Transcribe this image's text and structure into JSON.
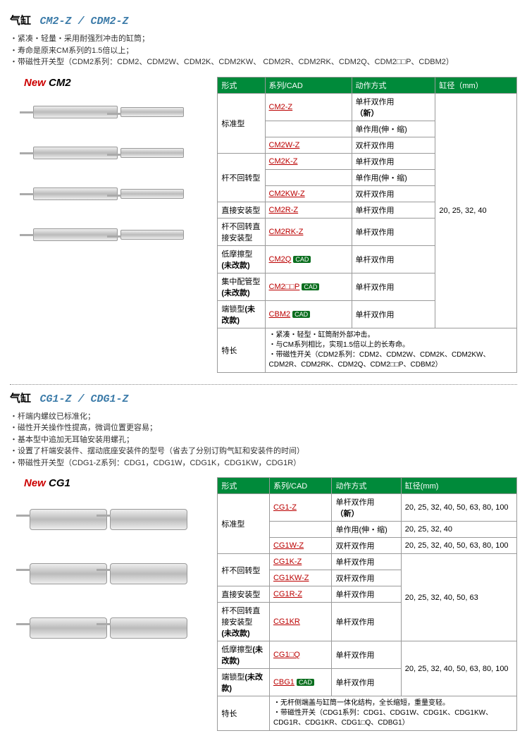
{
  "section1": {
    "title_prefix": "气缸",
    "title_model": "CM2-Z / CDM2-Z",
    "bullets": [
      "紧凑・轻量・采用耐强烈冲击的缸筒；",
      "寿命是原来CM系列的1.5倍以上；",
      "带磁性开关型（CDM2系列：CDM2、CDM2W、CDM2K、CDM2KW、 CDM2R、CDM2RK、CDM2Q、CDM2□□P、CDBM2）"
    ],
    "new_label": "New",
    "new_model": "CM2",
    "headers": {
      "form": "形式",
      "series": "系列/CAD",
      "action": "动作方式",
      "bore": "缸径（mm）"
    },
    "bore_all": "20, 25, 32, 40",
    "rows": [
      {
        "form": "标准型",
        "form_rowspan": 3,
        "series": "CM2-Z",
        "action": "单杆双作用\n（新）"
      },
      {
        "series": " ",
        "plain": true,
        "action": "单作用(伸・缩)"
      },
      {
        "series": "CM2W-Z",
        "action": "双杆双作用"
      },
      {
        "form": "杆不回转型",
        "form_rowspan": 3,
        "series": "CM2K-Z",
        "action": "单杆双作用"
      },
      {
        "series": " ",
        "plain": true,
        "action": "单作用(伸・缩)"
      },
      {
        "series": "CM2KW-Z",
        "action": "双杆双作用"
      },
      {
        "form": "直接安装型",
        "series": "CM2R-Z",
        "action": "单杆双作用"
      },
      {
        "form": "杆不回转直接安装型",
        "series": "CM2RK-Z",
        "action": "单杆双作用"
      },
      {
        "form": "低摩擦型(未改款)",
        "bold": true,
        "series": "CM2Q",
        "cad": true,
        "action": "单杆双作用"
      },
      {
        "form": "集中配管型(未改款)",
        "bold": true,
        "series": "CM2□□P",
        "cad": true,
        "action": "单杆双作用"
      },
      {
        "form": "端锁型(未改款)",
        "bold": true,
        "series": "CBM2",
        "cad": true,
        "action": "单杆双作用"
      }
    ],
    "features_label": "特长",
    "features": [
      "紧凑・轻型・缸筒耐外部冲击。",
      "与CM系列相比，实现1.5倍以上的长寿命。",
      "带磁性开关（CDM2系列：CDM2、CDM2W、CDM2K、CDM2KW、CDM2R、CDM2RK、CDM2Q、CDM2□□P、CDBM2）"
    ]
  },
  "section2": {
    "title_prefix": "气缸",
    "title_model": "CG1-Z / CDG1-Z",
    "bullets": [
      "杆端内螺纹已标准化；",
      "磁性开关操作性提高，微调位置更容易；",
      "基本型中追加无耳轴安装用螺孔；",
      "设置了杆端安装件、摆动底座安装件的型号（省去了分别订购气缸和安装件的时间）",
      "带磁性开关型（CDG1-Z系列：CDG1，CDG1W，CDG1K，CDG1KW，CDG1R）"
    ],
    "new_label": "New",
    "new_model": "CG1",
    "headers": {
      "form": "形式",
      "series": "系列/CAD",
      "action": "动作方式",
      "bore": "缸径(mm)"
    },
    "rows": [
      {
        "form": "标准型",
        "form_rowspan": 3,
        "series": "CG1-Z",
        "action": "单杆双作用\n（新）",
        "bore": "20, 25, 32, 40, 50, 63, 80, 100"
      },
      {
        "series": " ",
        "plain": true,
        "action": "单作用(伸・缩)",
        "bore": "20, 25, 32, 40"
      },
      {
        "series": "CG1W-Z",
        "action": "双杆双作用",
        "bore": "20, 25, 32, 40, 50, 63, 80, 100"
      },
      {
        "form": "杆不回转型",
        "form_rowspan": 2,
        "series": "CG1K-Z",
        "action": "单杆双作用",
        "bore": "20, 25, 32, 40, 50, 63",
        "bore_rowspan": 4
      },
      {
        "series": "CG1KW-Z",
        "action": "双杆双作用"
      },
      {
        "form": "直接安装型",
        "series": "CG1R-Z",
        "action": "单杆双作用"
      },
      {
        "form": "杆不回转直接安装型\n(未改款)",
        "bold": true,
        "series": "CG1KR",
        "action": "单杆双作用"
      },
      {
        "form": "低摩擦型(未改款)",
        "bold": true,
        "series": "CG1□Q",
        "action": "单杆双作用",
        "bore": "20, 25, 32, 40, 50, 63, 80, 100",
        "bore_rowspan": 2
      },
      {
        "form": "端锁型(未改款)",
        "bold": true,
        "series": "CBG1",
        "cad": true,
        "action": "单杆双作用"
      }
    ],
    "features_label": "特长",
    "features": [
      "无杆侧端盖与缸筒一体化结构，全长缩短，重量变轻。",
      "带磁性开关（CDG1系列：CDG1、CDG1W、CDG1K、CDG1KW、CDG1R、CDG1KR、CDG1□Q、CDBG1）"
    ]
  },
  "cad_label": "CAD"
}
